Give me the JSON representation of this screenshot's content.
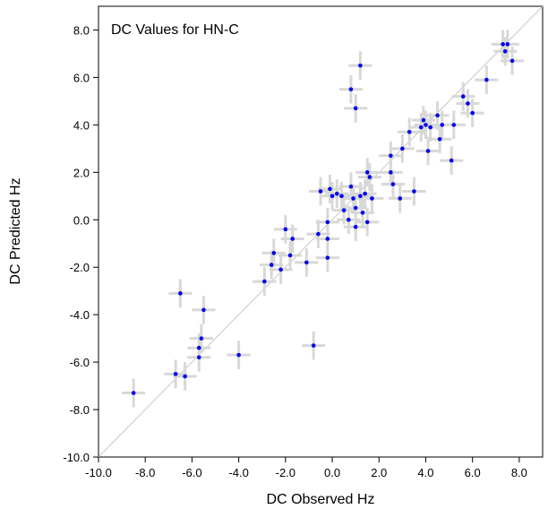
{
  "chart_data": {
    "type": "scatter",
    "title": "DC Values for HN-C",
    "xlabel": "DC Observed Hz",
    "ylabel": "DC Predicted Hz",
    "xlim": [
      -10.0,
      9.0
    ],
    "ylim": [
      -10.0,
      9.0
    ],
    "x_ticks": [
      -10.0,
      -8.0,
      -6.0,
      -4.0,
      -2.0,
      0.0,
      2.0,
      4.0,
      6.0,
      8.0
    ],
    "x_tick_labels": [
      "-10.0",
      "-8.0",
      "-6.0",
      "-4.0",
      "-2.0",
      "0.0",
      "2.0",
      "4.0",
      "6.0",
      "8.0"
    ],
    "y_ticks": [
      -10.0,
      -8.0,
      -6.0,
      -4.0,
      -2.0,
      0.0,
      2.0,
      4.0,
      6.0,
      8.0
    ],
    "y_tick_labels": [
      "-10.0",
      "-8.0",
      "-6.0",
      "-4.0",
      "-2.0",
      "0.0",
      "2.0",
      "4.0",
      "6.0",
      "8.0"
    ],
    "reference_line": "y = x",
    "grid": false,
    "colors": {
      "points": "#0000ee",
      "error_bars": "#d8d8d8",
      "reference_line": "#c8c8c8",
      "frame": "#000000"
    },
    "x_err": 0.5,
    "y_err": 0.6,
    "points": [
      {
        "x": -8.5,
        "y": -7.3
      },
      {
        "x": -6.7,
        "y": -6.5
      },
      {
        "x": -6.5,
        "y": -3.1
      },
      {
        "x": -6.3,
        "y": -6.6
      },
      {
        "x": -5.7,
        "y": -5.8
      },
      {
        "x": -5.7,
        "y": -5.4
      },
      {
        "x": -5.6,
        "y": -5.0
      },
      {
        "x": -5.5,
        "y": -3.8
      },
      {
        "x": -4.0,
        "y": -5.7
      },
      {
        "x": -2.9,
        "y": -2.6
      },
      {
        "x": -2.6,
        "y": -1.9
      },
      {
        "x": -2.5,
        "y": -1.4
      },
      {
        "x": -2.2,
        "y": -2.1
      },
      {
        "x": -2.0,
        "y": -0.4
      },
      {
        "x": -1.8,
        "y": -1.5
      },
      {
        "x": -1.7,
        "y": -0.8
      },
      {
        "x": -1.1,
        "y": -1.8
      },
      {
        "x": -0.8,
        "y": -5.3
      },
      {
        "x": -0.6,
        "y": -0.6
      },
      {
        "x": -0.5,
        "y": 1.2
      },
      {
        "x": -0.2,
        "y": -0.8
      },
      {
        "x": -0.2,
        "y": -1.6
      },
      {
        "x": -0.2,
        "y": -0.1
      },
      {
        "x": -0.1,
        "y": 1.3
      },
      {
        "x": 0.0,
        "y": 1.0
      },
      {
        "x": 0.2,
        "y": 1.1
      },
      {
        "x": 0.4,
        "y": 1.0
      },
      {
        "x": 0.5,
        "y": 0.4
      },
      {
        "x": 0.7,
        "y": 0.0
      },
      {
        "x": 0.8,
        "y": 1.4
      },
      {
        "x": 0.9,
        "y": 0.9
      },
      {
        "x": 1.0,
        "y": 0.5
      },
      {
        "x": 0.8,
        "y": 5.5
      },
      {
        "x": 1.0,
        "y": 4.7
      },
      {
        "x": 1.2,
        "y": 6.5
      },
      {
        "x": 1.0,
        "y": -0.3
      },
      {
        "x": 1.2,
        "y": 1.0
      },
      {
        "x": 1.3,
        "y": 0.3
      },
      {
        "x": 1.4,
        "y": 1.1
      },
      {
        "x": 1.5,
        "y": 2.0
      },
      {
        "x": 1.5,
        "y": -0.1
      },
      {
        "x": 1.6,
        "y": 1.8
      },
      {
        "x": 1.7,
        "y": 0.9
      },
      {
        "x": 2.5,
        "y": 2.7
      },
      {
        "x": 2.5,
        "y": 2.0
      },
      {
        "x": 2.6,
        "y": 1.5
      },
      {
        "x": 2.9,
        "y": 0.9
      },
      {
        "x": 3.0,
        "y": 3.0
      },
      {
        "x": 3.3,
        "y": 3.7
      },
      {
        "x": 3.5,
        "y": 1.2
      },
      {
        "x": 3.8,
        "y": 3.9
      },
      {
        "x": 3.9,
        "y": 4.2
      },
      {
        "x": 4.0,
        "y": 4.0
      },
      {
        "x": 4.1,
        "y": 2.9
      },
      {
        "x": 4.2,
        "y": 3.9
      },
      {
        "x": 4.5,
        "y": 4.4
      },
      {
        "x": 4.6,
        "y": 3.4
      },
      {
        "x": 4.7,
        "y": 4.0
      },
      {
        "x": 5.1,
        "y": 2.5
      },
      {
        "x": 5.2,
        "y": 4.0
      },
      {
        "x": 5.6,
        "y": 5.2
      },
      {
        "x": 5.8,
        "y": 4.9
      },
      {
        "x": 6.0,
        "y": 4.5
      },
      {
        "x": 6.6,
        "y": 5.9
      },
      {
        "x": 7.3,
        "y": 7.4
      },
      {
        "x": 7.4,
        "y": 7.1
      },
      {
        "x": 7.5,
        "y": 7.4
      },
      {
        "x": 7.7,
        "y": 6.7
      }
    ]
  }
}
